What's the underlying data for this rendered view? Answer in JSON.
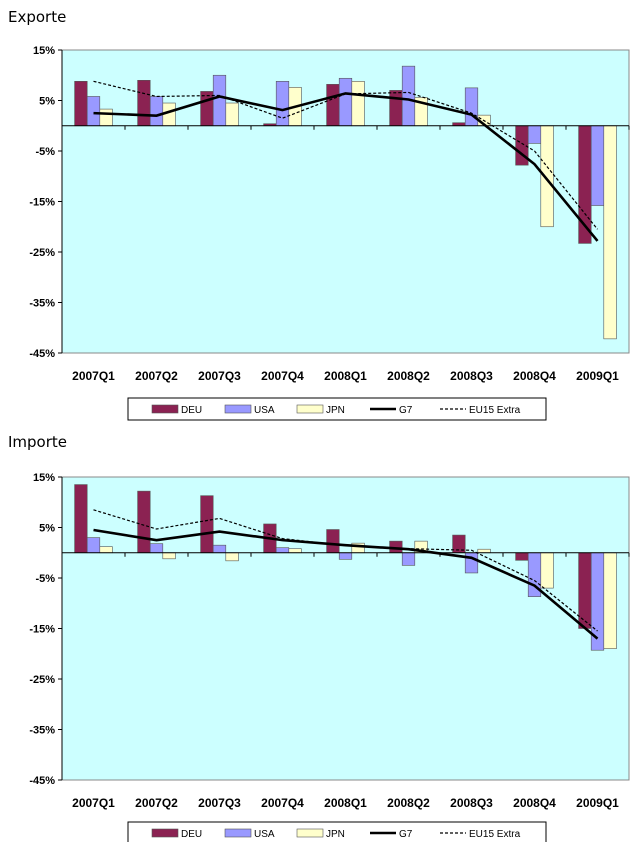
{
  "chart_data": [
    {
      "type": "bar",
      "title": "Exporte",
      "categories": [
        "2007Q1",
        "2007Q2",
        "2007Q3",
        "2007Q4",
        "2008Q1",
        "2008Q2",
        "2008Q3",
        "2008Q4",
        "2009Q1"
      ],
      "ylim": [
        -45,
        15
      ],
      "yticks": [
        15,
        5,
        -5,
        -15,
        -25,
        -35,
        -45
      ],
      "ytick_labels": [
        "15%",
        "5%",
        "-5%",
        "-15%",
        "-25%",
        "-35%",
        "-45%"
      ],
      "grid": false,
      "legend_position": "bottom",
      "series": [
        {
          "name": "DEU",
          "kind": "bar",
          "color": "#8b2252",
          "values": [
            8.8,
            9.0,
            6.8,
            0.4,
            8.2,
            7.0,
            0.6,
            -7.8,
            -23.3
          ]
        },
        {
          "name": "USA",
          "kind": "bar",
          "color": "#9999ff",
          "values": [
            5.8,
            5.8,
            10.0,
            8.8,
            9.4,
            11.8,
            7.5,
            -3.5,
            -15.8
          ]
        },
        {
          "name": "JPN",
          "kind": "bar",
          "color": "#ffffcc",
          "values": [
            3.3,
            4.5,
            4.5,
            7.6,
            8.8,
            5.6,
            2.1,
            -20.0,
            -42.2
          ]
        },
        {
          "name": "G7",
          "kind": "line",
          "color": "#000000",
          "values": [
            2.5,
            2.0,
            5.8,
            3.1,
            6.4,
            5.2,
            2.2,
            -7.6,
            -22.8
          ]
        },
        {
          "name": "EU15 Extra",
          "kind": "line-dashed",
          "color": "#000000",
          "values": [
            8.8,
            5.8,
            6.0,
            1.5,
            6.3,
            6.6,
            2.5,
            -5.0,
            -20.5
          ]
        }
      ]
    },
    {
      "type": "bar",
      "title": "Importe",
      "categories": [
        "2007Q1",
        "2007Q2",
        "2007Q3",
        "2007Q4",
        "2008Q1",
        "2008Q2",
        "2008Q3",
        "2008Q4",
        "2009Q1"
      ],
      "ylim": [
        -45,
        15
      ],
      "yticks": [
        15,
        5,
        -5,
        -15,
        -25,
        -35,
        -45
      ],
      "ytick_labels": [
        "15%",
        "5%",
        "-5%",
        "-15%",
        "-25%",
        "-35%",
        "-45%"
      ],
      "grid": false,
      "legend_position": "bottom",
      "series": [
        {
          "name": "DEU",
          "kind": "bar",
          "color": "#8b2252",
          "values": [
            13.5,
            12.2,
            11.3,
            5.7,
            4.6,
            2.3,
            3.5,
            -1.5,
            -15.0
          ]
        },
        {
          "name": "USA",
          "kind": "bar",
          "color": "#9999ff",
          "values": [
            3.0,
            1.8,
            1.5,
            1.0,
            -1.3,
            -2.5,
            -4.0,
            -8.7,
            -19.3
          ]
        },
        {
          "name": "JPN",
          "kind": "bar",
          "color": "#ffffcc",
          "values": [
            1.2,
            -1.2,
            -1.6,
            0.8,
            1.9,
            2.3,
            0.7,
            -7.0,
            -19.0
          ]
        },
        {
          "name": "G7",
          "kind": "line",
          "color": "#000000",
          "values": [
            4.5,
            2.5,
            4.2,
            2.5,
            1.5,
            0.7,
            -1.0,
            -6.5,
            -17.0
          ]
        },
        {
          "name": "EU15 Extra",
          "kind": "line-dashed",
          "color": "#000000",
          "values": [
            8.5,
            4.7,
            6.8,
            2.8,
            1.4,
            0.8,
            0.5,
            -5.5,
            -15.5
          ]
        }
      ]
    }
  ]
}
